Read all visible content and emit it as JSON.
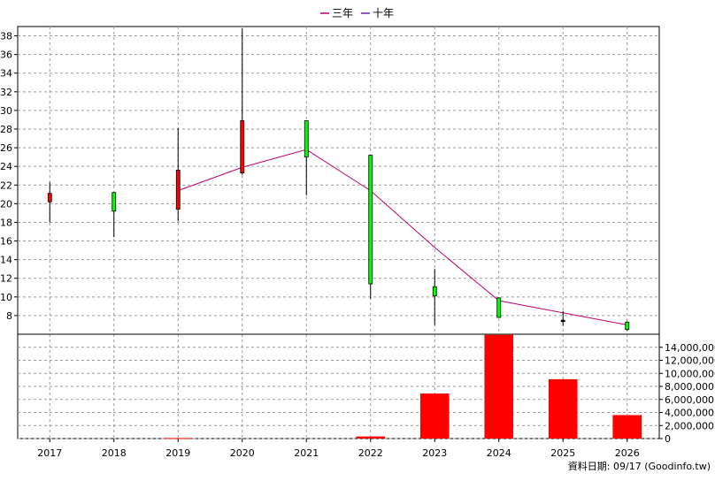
{
  "chart_data": {
    "type": "candlestick+bar",
    "categories": [
      "2017",
      "2018",
      "2019",
      "2020",
      "2021",
      "2022",
      "2023",
      "2024",
      "2025",
      "2026"
    ],
    "legend": [
      {
        "label": "三年",
        "color": "#c0006e"
      },
      {
        "label": "十年",
        "color": "#6a1fa8"
      }
    ],
    "price_axis": {
      "ticks": [
        "8",
        "10",
        "12",
        "14",
        "16",
        "18",
        "20",
        "22",
        "24",
        "26",
        "28",
        "30",
        "32",
        "34",
        "36",
        "38"
      ],
      "range": [
        6,
        39
      ]
    },
    "volume_axis": {
      "ticks": [
        "0",
        "2,000,000",
        "4,000,000",
        "6,000,000",
        "8,000,000",
        "10,000,000",
        "12,000,000",
        "14,000,000"
      ],
      "range": [
        0,
        16000000
      ]
    },
    "candles": [
      {
        "x": "2017",
        "open": 20.2,
        "close": 21.1,
        "high": 22.3,
        "low": 18.0,
        "color": "#ff0000"
      },
      {
        "x": "2018",
        "open": 21.2,
        "close": 19.2,
        "high": 21.2,
        "low": 16.4,
        "color": "#00ff00"
      },
      {
        "x": "2019",
        "open": 19.4,
        "close": 23.6,
        "high": 28.1,
        "low": 18.1,
        "color": "#ff0000"
      },
      {
        "x": "2020",
        "open": 23.3,
        "close": 28.9,
        "high": 38.8,
        "low": 23.1,
        "color": "#ff0000"
      },
      {
        "x": "2021",
        "open": 28.9,
        "close": 25.0,
        "high": 28.9,
        "low": 20.9,
        "color": "#00ff00"
      },
      {
        "x": "2022",
        "open": 25.2,
        "close": 11.4,
        "high": 25.2,
        "low": 9.8,
        "color": "#00ff00"
      },
      {
        "x": "2023",
        "open": 11.1,
        "close": 10.1,
        "high": 13.0,
        "low": 7.0,
        "color": "#00ff00"
      },
      {
        "x": "2024",
        "open": 9.9,
        "close": 7.8,
        "high": 9.9,
        "low": 7.8,
        "color": "#00ff00"
      },
      {
        "x": "2025",
        "open": 7.4,
        "close": 7.5,
        "high": 8.5,
        "low": 6.9,
        "color": "#000000"
      },
      {
        "x": "2026",
        "open": 7.3,
        "close": 6.5,
        "high": 7.4,
        "low": 6.4,
        "color": "#00ff00"
      }
    ],
    "ma_line": {
      "color": "#c0006e",
      "points": [
        {
          "x": "2019",
          "y": 21.4
        },
        {
          "x": "2020",
          "y": 23.9
        },
        {
          "x": "2021",
          "y": 25.8
        },
        {
          "x": "2022",
          "y": 21.4
        },
        {
          "x": "2023",
          "y": 15.3
        },
        {
          "x": "2024",
          "y": 9.6
        },
        {
          "x": "2025",
          "y": 8.3
        },
        {
          "x": "2026",
          "y": 7.0
        }
      ]
    },
    "volume": [
      {
        "x": "2017",
        "value": 0
      },
      {
        "x": "2018",
        "value": 0
      },
      {
        "x": "2019",
        "value": 80000
      },
      {
        "x": "2020",
        "value": 0
      },
      {
        "x": "2021",
        "value": 0
      },
      {
        "x": "2022",
        "value": 320000
      },
      {
        "x": "2023",
        "value": 6900000
      },
      {
        "x": "2024",
        "value": 15900000
      },
      {
        "x": "2025",
        "value": 9100000
      },
      {
        "x": "2026",
        "value": 3600000
      }
    ],
    "volume_color": "#ff0000",
    "grid": true,
    "footer": "資料日期: 09/17  (Goodinfo.tw)"
  }
}
